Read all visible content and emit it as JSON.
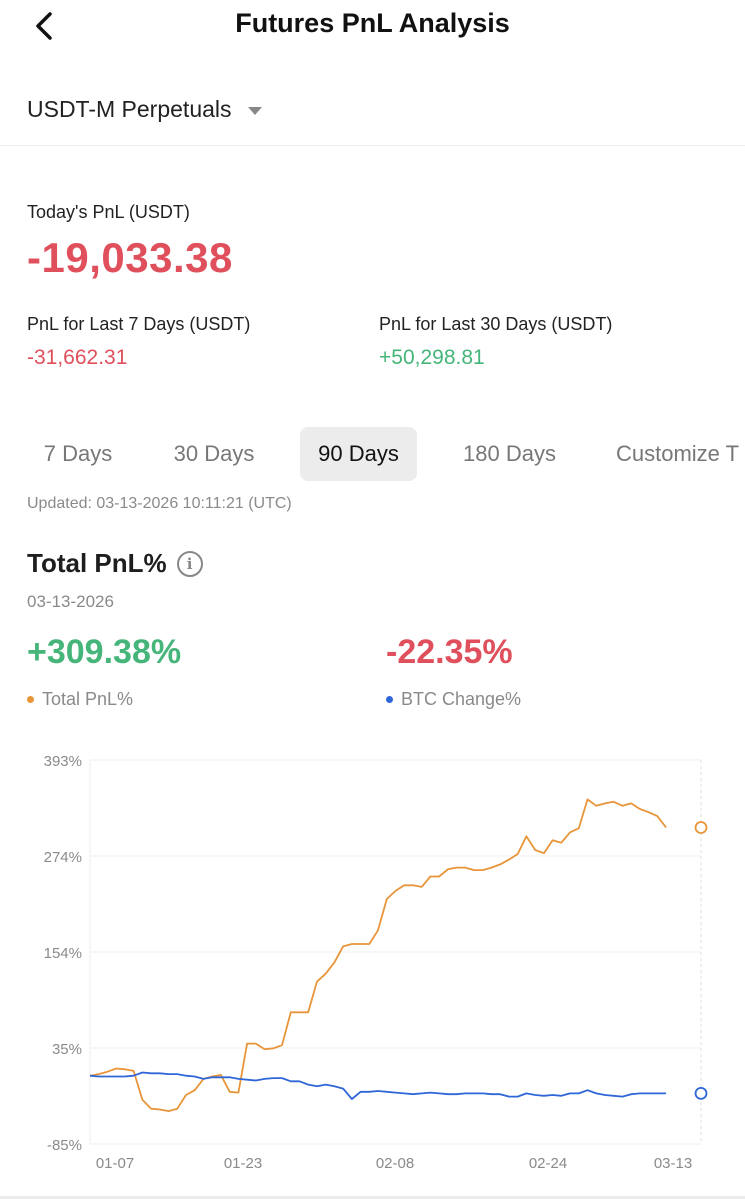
{
  "header": {
    "title": "Futures PnL Analysis"
  },
  "market_selector": {
    "label": "USDT-M Perpetuals"
  },
  "summary": {
    "today_label": "Today's PnL (USDT)",
    "today_value": "-19,033.38",
    "last7_label": "PnL for Last 7 Days (USDT)",
    "last7_value": "-31,662.31",
    "last30_label": "PnL for Last 30 Days (USDT)",
    "last30_value": "+50,298.81"
  },
  "tabs": [
    {
      "label": "7 Days",
      "active": false
    },
    {
      "label": "30 Days",
      "active": false
    },
    {
      "label": "90 Days",
      "active": true
    },
    {
      "label": "180 Days",
      "active": false
    },
    {
      "label": "Customize T",
      "active": false
    }
  ],
  "updated_text": "Updated: 03-13-2026 10:11:21 (UTC)",
  "total_pnl": {
    "title": "Total PnL%",
    "date": "03-13-2026",
    "total_value": "+309.38%",
    "btc_value": "-22.35%",
    "legend_total": "Total PnL%",
    "legend_btc": "BTC Change%"
  },
  "colors": {
    "negative": "#e0505c",
    "positive": "#45b57a",
    "total_series": "#e8953a",
    "btc_series": "#2f66d8"
  },
  "chart_data": {
    "type": "line",
    "x_ticks": [
      "01-07",
      "01-23",
      "02-08",
      "02-24",
      "03-13"
    ],
    "x_range": [
      "2026-01-02",
      "2026-03-13"
    ],
    "y_ticks": [
      "393%",
      "274%",
      "154%",
      "35%",
      "-85%"
    ],
    "ylim": [
      -85,
      393
    ],
    "grid": true,
    "series": [
      {
        "name": "Total PnL%",
        "color": "#e8953a",
        "points": [
          [
            "2026-01-02",
            0
          ],
          [
            "2026-01-03",
            2
          ],
          [
            "2026-01-04",
            5
          ],
          [
            "2026-01-05",
            9
          ],
          [
            "2026-01-06",
            8
          ],
          [
            "2026-01-07",
            6
          ],
          [
            "2026-01-08",
            -30
          ],
          [
            "2026-01-09",
            -41
          ],
          [
            "2026-01-10",
            -42
          ],
          [
            "2026-01-11",
            -44
          ],
          [
            "2026-01-12",
            -41
          ],
          [
            "2026-01-13",
            -24
          ],
          [
            "2026-01-14",
            -18
          ],
          [
            "2026-01-15",
            -4
          ],
          [
            "2026-01-16",
            -1
          ],
          [
            "2026-01-17",
            1
          ],
          [
            "2026-01-18",
            -20
          ],
          [
            "2026-01-19",
            -21
          ],
          [
            "2026-01-20",
            40
          ],
          [
            "2026-01-21",
            40
          ],
          [
            "2026-01-22",
            33
          ],
          [
            "2026-01-23",
            34
          ],
          [
            "2026-01-24",
            38
          ],
          [
            "2026-01-25",
            79
          ],
          [
            "2026-01-26",
            79
          ],
          [
            "2026-01-27",
            79
          ],
          [
            "2026-01-28",
            117
          ],
          [
            "2026-01-29",
            127
          ],
          [
            "2026-01-30",
            141
          ],
          [
            "2026-01-31",
            161
          ],
          [
            "2026-02-01",
            164
          ],
          [
            "2026-02-02",
            164
          ],
          [
            "2026-02-03",
            164
          ],
          [
            "2026-02-04",
            181
          ],
          [
            "2026-02-05",
            220
          ],
          [
            "2026-02-06",
            230
          ],
          [
            "2026-02-07",
            237
          ],
          [
            "2026-02-08",
            237
          ],
          [
            "2026-02-09",
            235
          ],
          [
            "2026-02-10",
            248
          ],
          [
            "2026-02-11",
            248
          ],
          [
            "2026-02-12",
            257
          ],
          [
            "2026-02-13",
            259
          ],
          [
            "2026-02-14",
            259
          ],
          [
            "2026-02-15",
            256
          ],
          [
            "2026-02-16",
            256
          ],
          [
            "2026-02-17",
            259
          ],
          [
            "2026-02-18",
            263
          ],
          [
            "2026-02-19",
            269
          ],
          [
            "2026-02-20",
            276
          ],
          [
            "2026-02-21",
            298
          ],
          [
            "2026-02-22",
            281
          ],
          [
            "2026-02-23",
            277
          ],
          [
            "2026-02-24",
            293
          ],
          [
            "2026-02-25",
            290
          ],
          [
            "2026-02-26",
            303
          ],
          [
            "2026-02-27",
            308
          ],
          [
            "2026-02-28",
            344
          ],
          [
            "2026-03-01",
            336
          ],
          [
            "2026-03-02",
            339
          ],
          [
            "2026-03-03",
            341
          ],
          [
            "2026-03-04",
            336
          ],
          [
            "2026-03-05",
            339
          ],
          [
            "2026-03-06",
            332
          ],
          [
            "2026-03-07",
            328
          ],
          [
            "2026-03-08",
            323
          ],
          [
            "2026-03-09",
            309
          ]
        ]
      },
      {
        "name": "BTC Change%",
        "color": "#2f66d8",
        "points": [
          [
            "2026-01-02",
            0
          ],
          [
            "2026-01-03",
            -1
          ],
          [
            "2026-01-04",
            -1
          ],
          [
            "2026-01-05",
            -1
          ],
          [
            "2026-01-06",
            -1
          ],
          [
            "2026-01-07",
            0
          ],
          [
            "2026-01-08",
            4
          ],
          [
            "2026-01-09",
            3
          ],
          [
            "2026-01-10",
            3
          ],
          [
            "2026-01-11",
            2
          ],
          [
            "2026-01-12",
            2
          ],
          [
            "2026-01-13",
            0
          ],
          [
            "2026-01-14",
            -1
          ],
          [
            "2026-01-15",
            -4
          ],
          [
            "2026-01-16",
            -2
          ],
          [
            "2026-01-17",
            -2
          ],
          [
            "2026-01-18",
            -2
          ],
          [
            "2026-01-19",
            -4
          ],
          [
            "2026-01-20",
            -5
          ],
          [
            "2026-01-21",
            -6
          ],
          [
            "2026-01-22",
            -4
          ],
          [
            "2026-01-23",
            -3
          ],
          [
            "2026-01-24",
            -3
          ],
          [
            "2026-01-25",
            -7
          ],
          [
            "2026-01-26",
            -7
          ],
          [
            "2026-01-27",
            -11
          ],
          [
            "2026-01-28",
            -13
          ],
          [
            "2026-01-29",
            -11
          ],
          [
            "2026-01-30",
            -13
          ],
          [
            "2026-01-31",
            -16
          ],
          [
            "2026-02-01",
            -29
          ],
          [
            "2026-02-02",
            -20
          ],
          [
            "2026-02-03",
            -20
          ],
          [
            "2026-02-04",
            -19
          ],
          [
            "2026-02-05",
            -20
          ],
          [
            "2026-02-06",
            -21
          ],
          [
            "2026-02-07",
            -22
          ],
          [
            "2026-02-08",
            -23
          ],
          [
            "2026-02-09",
            -22
          ],
          [
            "2026-02-10",
            -21
          ],
          [
            "2026-02-11",
            -22
          ],
          [
            "2026-02-12",
            -23
          ],
          [
            "2026-02-13",
            -23
          ],
          [
            "2026-02-14",
            -22
          ],
          [
            "2026-02-15",
            -22
          ],
          [
            "2026-02-16",
            -22
          ],
          [
            "2026-02-17",
            -23
          ],
          [
            "2026-02-18",
            -23
          ],
          [
            "2026-02-19",
            -26
          ],
          [
            "2026-02-20",
            -26
          ],
          [
            "2026-02-21",
            -22
          ],
          [
            "2026-02-22",
            -24
          ],
          [
            "2026-02-23",
            -25
          ],
          [
            "2026-02-24",
            -24
          ],
          [
            "2026-02-25",
            -25
          ],
          [
            "2026-02-26",
            -22
          ],
          [
            "2026-02-27",
            -22
          ],
          [
            "2026-02-28",
            -18
          ],
          [
            "2026-03-01",
            -22
          ],
          [
            "2026-03-02",
            -24
          ],
          [
            "2026-03-03",
            -25
          ],
          [
            "2026-03-04",
            -26
          ],
          [
            "2026-03-05",
            -23
          ],
          [
            "2026-03-06",
            -22
          ],
          [
            "2026-03-07",
            -22
          ],
          [
            "2026-03-08",
            -22
          ],
          [
            "2026-03-09",
            -22
          ]
        ]
      }
    ]
  }
}
